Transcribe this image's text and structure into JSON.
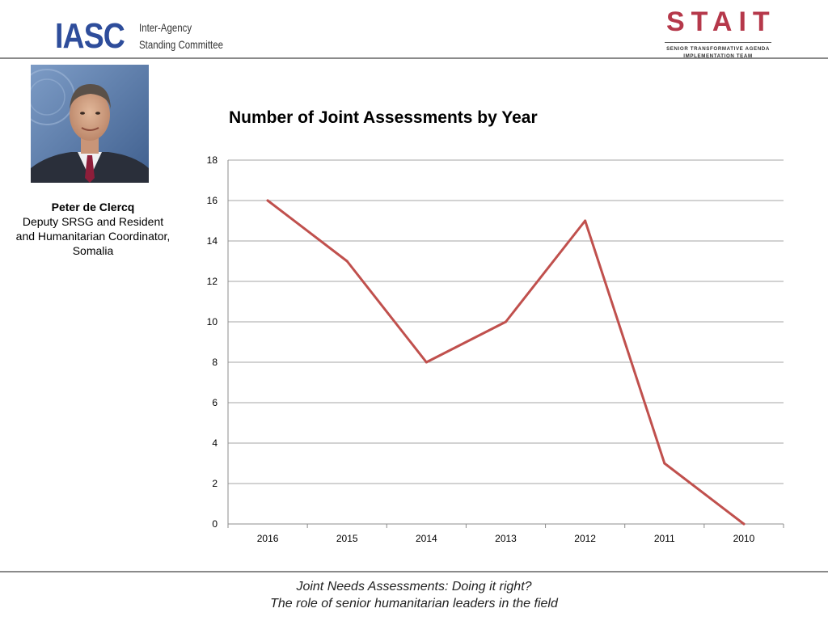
{
  "header": {
    "iasc_logo": {
      "mark": "IASC",
      "line1": "Inter-Agency",
      "line2": "Standing Committee"
    },
    "stait_logo": {
      "mark": "STAIT",
      "line1": "SENIOR TRANSFORMATIVE AGENDA",
      "line2": "IMPLEMENTATION TEAM"
    }
  },
  "profile": {
    "photo_icon": "portrait-photo",
    "name": "Peter de Clercq",
    "role_line1": "Deputy SRSG and Resident",
    "role_line2": "and Humanitarian Coordinator,",
    "role_line3": "Somalia"
  },
  "chart_data": {
    "type": "line",
    "title": "Number of Joint Assessments by Year",
    "categories": [
      "2016",
      "2015",
      "2014",
      "2013",
      "2012",
      "2011",
      "2010"
    ],
    "series": [
      {
        "values": [
          16,
          13,
          8,
          10,
          15,
          3,
          0
        ],
        "color": "#c0504d"
      }
    ],
    "ylim": [
      0,
      18
    ],
    "yticks": [
      0,
      2,
      4,
      6,
      8,
      10,
      12,
      14,
      16,
      18
    ],
    "xlabel": "",
    "ylabel": "",
    "grid": true,
    "legend": "none"
  },
  "footer": {
    "line1": "Joint Needs Assessments: Doing it right?",
    "line2": "The role of senior humanitarian leaders in the field"
  }
}
